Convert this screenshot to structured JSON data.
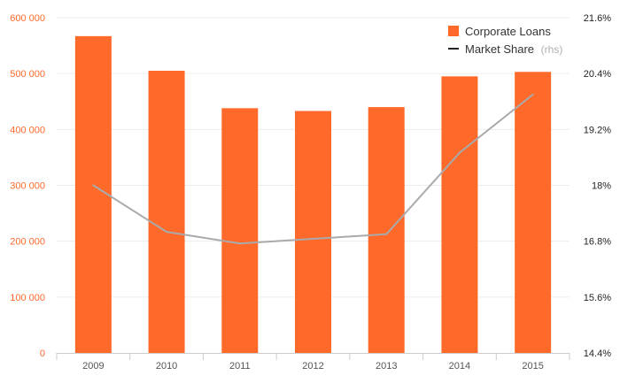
{
  "chart_data": {
    "type": "bar",
    "categories": [
      "2009",
      "2010",
      "2011",
      "2012",
      "2013",
      "2014",
      "2015"
    ],
    "series": [
      {
        "name": "Corporate Loans",
        "type": "bar",
        "axis": "left",
        "color": "#ff6a2b",
        "values": [
          567000,
          505000,
          438000,
          433000,
          440000,
          495000,
          503000
        ]
      },
      {
        "name": "Market Share",
        "legend_suffix": "(rhs)",
        "type": "line",
        "axis": "right",
        "color": "#aaaaaa",
        "legend_color": "#222222",
        "values": [
          18.0,
          17.0,
          16.75,
          16.85,
          16.95,
          18.7,
          19.95
        ]
      }
    ],
    "y_left": {
      "range": [
        0,
        600000
      ],
      "ticks": [
        0,
        100000,
        200000,
        300000,
        400000,
        500000,
        600000
      ],
      "tick_labels": [
        "0",
        "100 000",
        "200 000",
        "300 000",
        "400 000",
        "500 000",
        "600 000"
      ],
      "color": "#ff6a2b"
    },
    "y_right": {
      "range": [
        14.4,
        21.6
      ],
      "ticks": [
        14.4,
        15.6,
        16.8,
        18.0,
        19.2,
        20.4,
        21.6
      ],
      "tick_labels": [
        "14.4%",
        "15.6%",
        "16.8%",
        "18%",
        "19.2%",
        "20.4%",
        "21.6%"
      ],
      "color": "#222222"
    },
    "grid": true,
    "legend_position": "top-right"
  }
}
